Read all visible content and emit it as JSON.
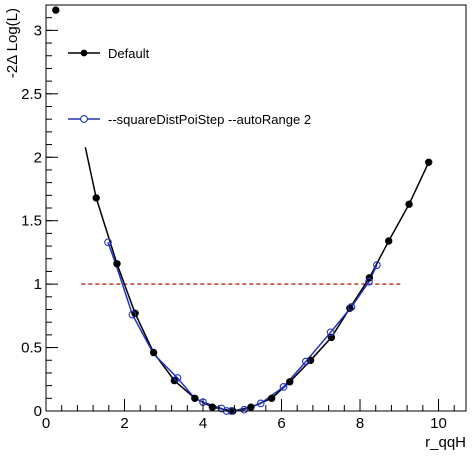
{
  "chart_data": {
    "type": "line",
    "title": "",
    "xlabel": "r_qqH",
    "ylabel": "-2Δ Log(L)",
    "xlim": [
      0,
      10.7
    ],
    "ylim": [
      0,
      3.2
    ],
    "x_ticks": [
      0,
      2,
      4,
      6,
      8,
      10
    ],
    "x_tick_labels": [
      "0",
      "2",
      "4",
      "6",
      "8",
      "10"
    ],
    "y_ticks": [
      0,
      0.5,
      1,
      1.5,
      2,
      2.5,
      3
    ],
    "y_tick_labels": [
      "0",
      "0.5",
      "1",
      "1.5",
      "2",
      "2.5",
      "3"
    ],
    "grid": false,
    "legend_position": "top-left",
    "threshold": {
      "y": 1,
      "x_from": 0.9,
      "x_to": 9.1,
      "color": "#c0392b",
      "style": "dashed"
    },
    "series": [
      {
        "name": "Default",
        "color": "#000000",
        "marker": "filled-circle",
        "points": [
          {
            "x": 0.25,
            "y": 3.16
          },
          {
            "x": 1.28,
            "y": 1.68
          },
          {
            "x": 1.81,
            "y": 1.16
          },
          {
            "x": 2.27,
            "y": 0.77
          },
          {
            "x": 2.74,
            "y": 0.46
          },
          {
            "x": 3.27,
            "y": 0.24
          },
          {
            "x": 3.79,
            "y": 0.1
          },
          {
            "x": 4.24,
            "y": 0.03
          },
          {
            "x": 4.76,
            "y": 0.0
          },
          {
            "x": 5.22,
            "y": 0.03
          },
          {
            "x": 5.75,
            "y": 0.1
          },
          {
            "x": 6.21,
            "y": 0.23
          },
          {
            "x": 6.74,
            "y": 0.4
          },
          {
            "x": 7.27,
            "y": 0.58
          },
          {
            "x": 7.74,
            "y": 0.81
          },
          {
            "x": 8.24,
            "y": 1.05
          },
          {
            "x": 8.73,
            "y": 1.34
          },
          {
            "x": 9.25,
            "y": 1.63
          },
          {
            "x": 9.75,
            "y": 1.96
          }
        ],
        "curve": [
          [
            1.0,
            2.08
          ],
          [
            1.28,
            1.68
          ],
          [
            1.81,
            1.16
          ],
          [
            2.27,
            0.77
          ],
          [
            2.74,
            0.46
          ],
          [
            3.27,
            0.24
          ],
          [
            3.79,
            0.1
          ],
          [
            4.24,
            0.03
          ],
          [
            4.76,
            0.0
          ],
          [
            5.22,
            0.03
          ],
          [
            5.75,
            0.1
          ],
          [
            6.21,
            0.23
          ],
          [
            6.74,
            0.4
          ],
          [
            7.27,
            0.58
          ],
          [
            7.74,
            0.81
          ],
          [
            8.24,
            1.05
          ],
          [
            8.73,
            1.34
          ],
          [
            9.25,
            1.63
          ],
          [
            9.75,
            1.96
          ]
        ]
      },
      {
        "name": "--squareDistPoiStep --autoRange 2",
        "color": "#2233bb",
        "marker": "open-circle",
        "points": [
          {
            "x": 1.58,
            "y": 1.33
          },
          {
            "x": 2.2,
            "y": 0.76
          },
          {
            "x": 3.35,
            "y": 0.26
          },
          {
            "x": 4.0,
            "y": 0.07
          },
          {
            "x": 4.47,
            "y": 0.02
          },
          {
            "x": 4.6,
            "y": 0.0
          },
          {
            "x": 4.72,
            "y": 0.0
          },
          {
            "x": 5.05,
            "y": 0.01
          },
          {
            "x": 5.47,
            "y": 0.06
          },
          {
            "x": 6.05,
            "y": 0.19
          },
          {
            "x": 6.62,
            "y": 0.39
          },
          {
            "x": 7.25,
            "y": 0.62
          },
          {
            "x": 7.78,
            "y": 0.82
          },
          {
            "x": 8.23,
            "y": 1.02
          },
          {
            "x": 8.43,
            "y": 1.15
          }
        ],
        "curve": [
          [
            1.58,
            1.33
          ],
          [
            1.81,
            1.13
          ],
          [
            2.2,
            0.76
          ],
          [
            2.74,
            0.45
          ],
          [
            3.35,
            0.26
          ],
          [
            3.79,
            0.1
          ],
          [
            4.0,
            0.07
          ],
          [
            4.47,
            0.02
          ],
          [
            4.6,
            0.0
          ],
          [
            4.72,
            0.0
          ],
          [
            5.05,
            0.01
          ],
          [
            5.47,
            0.06
          ],
          [
            6.05,
            0.19
          ],
          [
            6.62,
            0.39
          ],
          [
            7.25,
            0.62
          ],
          [
            7.78,
            0.82
          ],
          [
            8.23,
            1.02
          ],
          [
            8.43,
            1.15
          ]
        ]
      }
    ]
  }
}
